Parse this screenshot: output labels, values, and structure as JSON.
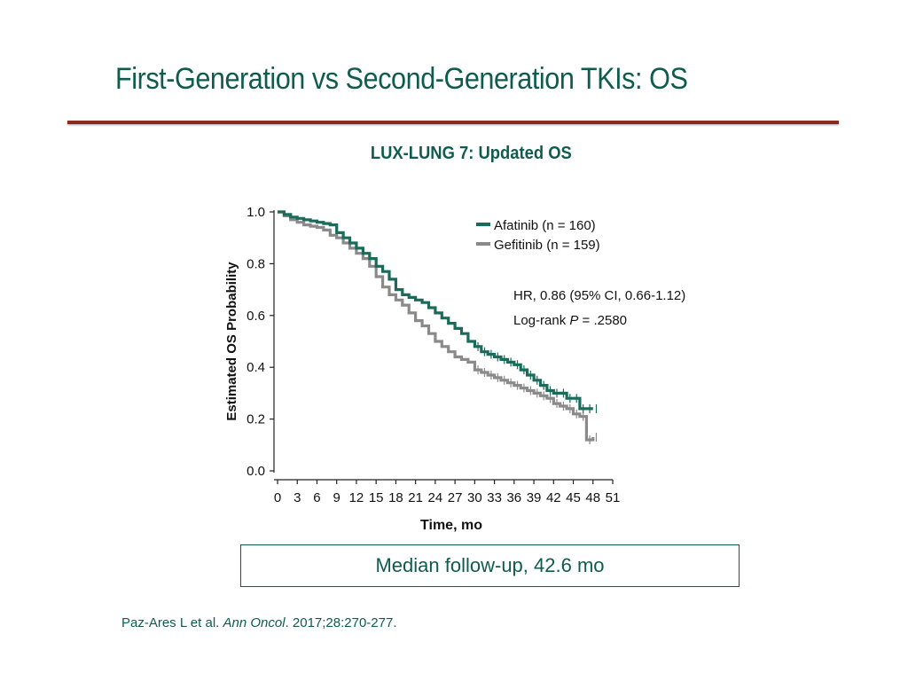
{
  "slide": {
    "title": "First-Generation vs Second-Generation TKIs: OS"
  },
  "chart_title": "LUX-LUNG 7: Updated OS",
  "annotation": {
    "hr_text": "HR, 0.86 (95% CI, 0.66-1.12)",
    "logrank_prefix": "Log-rank ",
    "logrank_p": "P",
    "logrank_suffix": " = .2580"
  },
  "followup": {
    "text": "Median follow-up, 42.6 mo"
  },
  "citation": {
    "authors": "Paz-Ares L et al. ",
    "journal": "Ann Oncol",
    "details": ". 2017;28:270-277."
  },
  "colors": {
    "afatinib": "#1a6b5a",
    "gefitinib": "#8a8a8a",
    "title": "#0f5c4e",
    "rule": "#8b2a1d"
  },
  "chart_data": {
    "type": "line",
    "xlabel": "Time, mo",
    "ylabel": "Estimated OS Probability",
    "xlim": [
      0,
      51
    ],
    "ylim": [
      0,
      1.0
    ],
    "x_ticks": [
      0,
      3,
      6,
      9,
      12,
      15,
      18,
      21,
      24,
      27,
      30,
      33,
      36,
      39,
      42,
      45,
      48,
      51
    ],
    "y_ticks": [
      0.0,
      0.2,
      0.4,
      0.6,
      0.8,
      1.0
    ],
    "y_tick_labels": [
      "0.0",
      "0.2",
      "0.4",
      "0.6",
      "0.8",
      "1.0"
    ],
    "legend_position": "top-right",
    "series": [
      {
        "name": "Afatinib (n = 160)",
        "color": "#1a6b5a",
        "x": [
          0,
          1,
          2,
          3,
          4,
          5,
          6,
          7,
          8,
          9,
          10,
          11,
          12,
          13,
          14,
          15,
          16,
          17,
          18,
          19,
          20,
          21,
          22,
          23,
          24,
          25,
          26,
          27,
          28,
          29,
          30,
          31,
          32,
          33,
          34,
          35,
          36,
          37,
          38,
          39,
          40,
          41,
          42,
          43,
          44,
          45,
          46,
          47,
          48
        ],
        "y": [
          1.0,
          0.99,
          0.98,
          0.975,
          0.97,
          0.965,
          0.96,
          0.955,
          0.95,
          0.92,
          0.9,
          0.88,
          0.86,
          0.84,
          0.82,
          0.79,
          0.77,
          0.74,
          0.7,
          0.68,
          0.67,
          0.66,
          0.65,
          0.63,
          0.61,
          0.59,
          0.57,
          0.55,
          0.53,
          0.5,
          0.48,
          0.46,
          0.45,
          0.44,
          0.43,
          0.42,
          0.41,
          0.39,
          0.37,
          0.35,
          0.33,
          0.31,
          0.3,
          0.3,
          0.28,
          0.28,
          0.24,
          0.24,
          0.24
        ]
      },
      {
        "name": "Gefitinib (n = 159)",
        "color": "#8a8a8a",
        "x": [
          0,
          1,
          2,
          3,
          4,
          5,
          6,
          7,
          8,
          9,
          10,
          11,
          12,
          13,
          14,
          15,
          16,
          17,
          18,
          19,
          20,
          21,
          22,
          23,
          24,
          25,
          26,
          27,
          28,
          29,
          30,
          31,
          32,
          33,
          34,
          35,
          36,
          37,
          38,
          39,
          40,
          41,
          42,
          43,
          44,
          45,
          46,
          47,
          48
        ],
        "y": [
          1.0,
          0.985,
          0.97,
          0.96,
          0.95,
          0.945,
          0.94,
          0.93,
          0.91,
          0.9,
          0.88,
          0.86,
          0.84,
          0.82,
          0.79,
          0.75,
          0.71,
          0.68,
          0.66,
          0.64,
          0.61,
          0.58,
          0.56,
          0.53,
          0.5,
          0.48,
          0.46,
          0.44,
          0.43,
          0.42,
          0.39,
          0.38,
          0.37,
          0.36,
          0.35,
          0.34,
          0.33,
          0.32,
          0.31,
          0.3,
          0.29,
          0.28,
          0.26,
          0.25,
          0.24,
          0.22,
          0.21,
          0.12,
          0.13
        ]
      }
    ]
  }
}
